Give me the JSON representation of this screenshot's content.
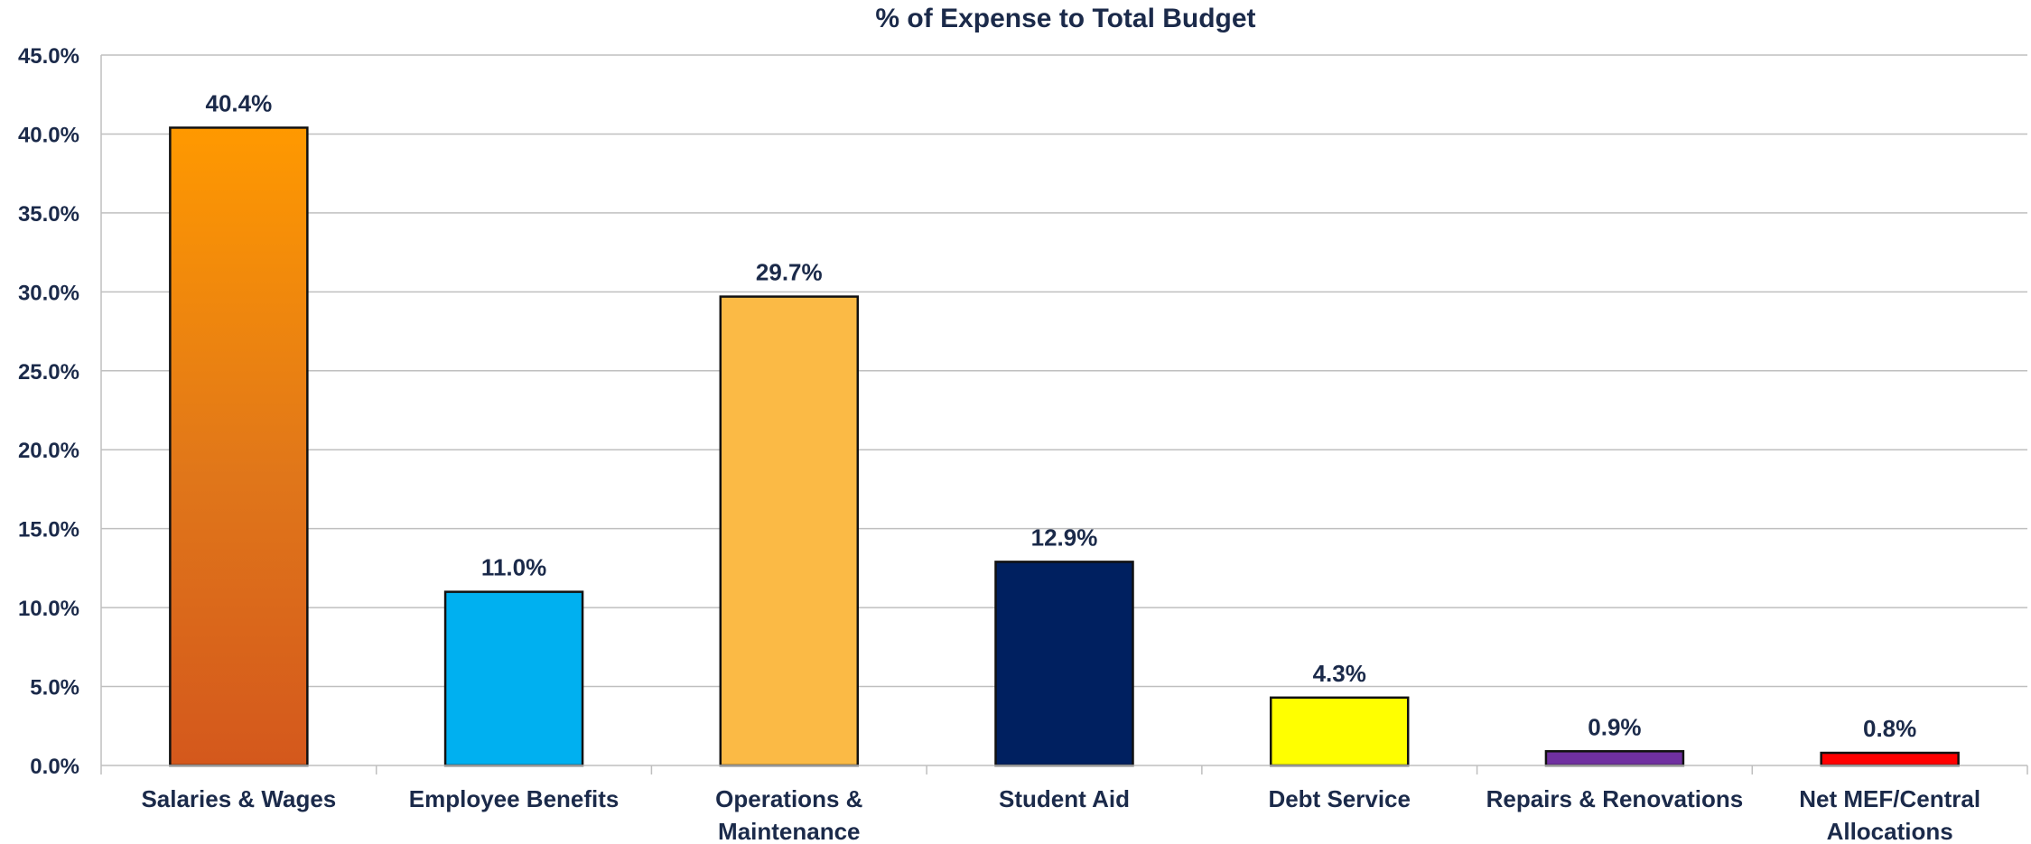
{
  "chart_data": {
    "type": "bar",
    "title": "% of Expense to Total Budget",
    "xlabel": "",
    "ylabel": "",
    "ylim": [
      0,
      45
    ],
    "ytick_step": 5,
    "ytick_labels": [
      "0.0%",
      "5.0%",
      "10.0%",
      "15.0%",
      "20.0%",
      "25.0%",
      "30.0%",
      "35.0%",
      "40.0%",
      "45.0%"
    ],
    "categories": [
      [
        "Salaries & Wages"
      ],
      [
        "Employee Benefits"
      ],
      [
        "Operations &",
        "Maintenance"
      ],
      [
        "Student Aid"
      ],
      [
        "Debt Service"
      ],
      [
        "Repairs & Renovations"
      ],
      [
        "Net MEF/Central",
        "Allocations"
      ]
    ],
    "values": [
      40.4,
      11.0,
      29.7,
      12.9,
      4.3,
      0.9,
      0.8
    ],
    "data_labels": [
      "40.4%",
      "11.0%",
      "29.7%",
      "12.9%",
      "4.3%",
      "0.9%",
      "0.8%"
    ],
    "colors": [
      "gradient-orange",
      "#00b0f0",
      "#fbba45",
      "#002060",
      "#ffff00",
      "#7030a0",
      "#ff0000"
    ],
    "gradient_colors": [
      "#ff9900",
      "#d4581c"
    ],
    "grid": true,
    "legend": "none"
  }
}
